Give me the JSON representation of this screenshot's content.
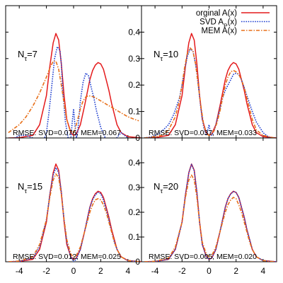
{
  "chart_data": {
    "type": "line",
    "layout": "2x2 panels sharing x and y axes",
    "xlim": [
      -5,
      5
    ],
    "ylim": [
      0,
      0.5
    ],
    "xticks": [
      -4,
      -2,
      0,
      2,
      4
    ],
    "xtick_labels": [
      "-4",
      "-2",
      "0",
      "2",
      "4"
    ],
    "yticks": [
      0,
      0.1,
      0.2,
      0.3,
      0.4
    ],
    "ytick_labels": [
      "0",
      "0.1",
      "0.2",
      "0.3",
      "0.4"
    ],
    "grid": false,
    "legend": {
      "placement": "top-right (upper-right panel)",
      "entries": [
        {
          "label_main": "orginal A(x)",
          "label_sub": "",
          "label_tail": "",
          "color": "#e41a1c",
          "dash": "solid"
        },
        {
          "label_main": "SVD A",
          "label_sub": "P",
          "label_tail": "(x)",
          "color": "#1f3fd0",
          "dash": "dotted"
        },
        {
          "label_main": "MEM A(x)",
          "label_sub": "",
          "label_tail": "",
          "color": "#e8701a",
          "dash": "dashdot"
        }
      ]
    },
    "panels": [
      {
        "label_main": "N",
        "label_sub": "τ",
        "label_tail": "=7",
        "rmse_text": "RMSE: SVD=0.076, MEM=0.067",
        "series": [
          {
            "name": "orginal A(x)",
            "x": [
              -4.8,
              -4,
              -3,
              -2.5,
              -2,
              -1.75,
              -1.5,
              -1.3,
              -1.1,
              -0.9,
              -0.7,
              -0.5,
              -0.2,
              0,
              0.2,
              0.5,
              0.8,
              1,
              1.2,
              1.4,
              1.6,
              1.8,
              2,
              2.2,
              2.4,
              2.6,
              2.8,
              3,
              3.2,
              3.5,
              4,
              5
            ],
            "y": [
              0,
              0.001,
              0.01,
              0.05,
              0.16,
              0.27,
              0.36,
              0.395,
              0.37,
              0.28,
              0.16,
              0.07,
              0.02,
              0.01,
              0.015,
              0.05,
              0.12,
              0.17,
              0.22,
              0.255,
              0.275,
              0.285,
              0.28,
              0.26,
              0.22,
              0.18,
              0.13,
              0.09,
              0.05,
              0.02,
              0.005,
              0
            ]
          },
          {
            "name": "SVD A_P(x)",
            "x": [
              -4.8,
              -4.5,
              -4,
              -3.5,
              -3,
              -2.6,
              -2.2,
              -2,
              -1.8,
              -1.6,
              -1.4,
              -1.2,
              -1,
              -0.9,
              -0.8,
              -0.6,
              -0.4,
              -0.2,
              -0.1,
              0,
              0.1,
              0.2,
              0.3,
              0.5,
              0.7,
              0.9,
              1.1,
              1.3,
              1.5,
              1.7,
              2,
              2.5,
              3,
              3.5,
              4,
              4.5,
              4.8
            ],
            "y": [
              -0.01,
              -0.005,
              0.01,
              0.01,
              0.0,
              -0.01,
              -0.01,
              0.02,
              0.1,
              0.2,
              0.3,
              0.345,
              0.33,
              0.28,
              0.18,
              0.06,
              0.0,
              0.0,
              0.06,
              0.11,
              0.05,
              0.0,
              0.02,
              0.14,
              0.21,
              0.245,
              0.235,
              0.19,
              0.15,
              0.1,
              0.04,
              -0.02,
              -0.01,
              0.02,
              0.0,
              -0.02,
              0.0
            ]
          },
          {
            "name": "MEM A(x)",
            "x": [
              -4.8,
              -4,
              -3.5,
              -3,
              -2.5,
              -2,
              -1.7,
              -1.5,
              -1.3,
              -1.1,
              -0.9,
              -0.7,
              -0.5,
              -0.3,
              -0.1,
              0,
              0.1,
              0.3,
              0.5,
              0.7,
              0.9,
              1.1,
              1.5,
              2,
              2.5,
              3,
              3.5,
              4,
              4.5,
              4.8
            ],
            "y": [
              0.02,
              0.05,
              0.08,
              0.12,
              0.17,
              0.23,
              0.27,
              0.29,
              0.29,
              0.26,
              0.2,
              0.13,
              0.07,
              0.035,
              0.02,
              0.02,
              0.03,
              0.07,
              0.11,
              0.14,
              0.155,
              0.16,
              0.155,
              0.14,
              0.125,
              0.11,
              0.095,
              0.08,
              0.07,
              0.065
            ]
          }
        ]
      },
      {
        "label_main": "N",
        "label_sub": "τ",
        "label_tail": "=10",
        "rmse_text": "RMSE: SVD=0.037, MEM=0.033",
        "series": [
          {
            "name": "orginal A(x)",
            "x": [
              -4.8,
              -4,
              -3,
              -2.5,
              -2,
              -1.75,
              -1.5,
              -1.3,
              -1.1,
              -0.9,
              -0.7,
              -0.5,
              -0.2,
              0,
              0.2,
              0.5,
              0.8,
              1,
              1.2,
              1.4,
              1.6,
              1.8,
              2,
              2.2,
              2.4,
              2.6,
              2.8,
              3,
              3.2,
              3.5,
              4,
              5
            ],
            "y": [
              0,
              0.001,
              0.01,
              0.05,
              0.16,
              0.27,
              0.36,
              0.395,
              0.37,
              0.28,
              0.16,
              0.07,
              0.02,
              0.01,
              0.015,
              0.05,
              0.12,
              0.17,
              0.22,
              0.255,
              0.275,
              0.285,
              0.28,
              0.26,
              0.22,
              0.18,
              0.13,
              0.09,
              0.05,
              0.02,
              0.005,
              0
            ]
          },
          {
            "name": "SVD A_P(x)",
            "x": [
              -4.8,
              -4.2,
              -3.6,
              -3,
              -2.6,
              -2.2,
              -2,
              -1.8,
              -1.6,
              -1.4,
              -1.2,
              -1,
              -0.8,
              -0.6,
              -0.4,
              -0.2,
              -0.1,
              0,
              0.1,
              0.2,
              0.4,
              0.6,
              0.8,
              1,
              1.2,
              1.4,
              1.6,
              1.8,
              2,
              2.2,
              2.4,
              2.6,
              2.8,
              3,
              3.2,
              3.5,
              4,
              4.5,
              4.8
            ],
            "y": [
              0.0,
              0.005,
              0.02,
              0.05,
              0.09,
              0.15,
              0.2,
              0.26,
              0.31,
              0.335,
              0.33,
              0.28,
              0.2,
              0.11,
              0.04,
              0.01,
              0.03,
              0.05,
              0.02,
              0.01,
              0.03,
              0.07,
              0.11,
              0.15,
              0.18,
              0.2,
              0.22,
              0.24,
              0.245,
              0.24,
              0.22,
              0.19,
              0.16,
              0.13,
              0.1,
              0.06,
              0.02,
              0.0,
              0.0
            ]
          },
          {
            "name": "MEM A(x)",
            "x": [
              -4.8,
              -4,
              -3.5,
              -3,
              -2.5,
              -2.2,
              -2,
              -1.8,
              -1.6,
              -1.4,
              -1.2,
              -1,
              -0.8,
              -0.6,
              -0.4,
              -0.2,
              0,
              0.2,
              0.4,
              0.6,
              0.8,
              1,
              1.2,
              1.4,
              1.6,
              1.8,
              2,
              2.2,
              2.4,
              2.6,
              2.8,
              3,
              3.2,
              3.5,
              4,
              4.8
            ],
            "y": [
              0,
              0.005,
              0.01,
              0.03,
              0.08,
              0.14,
              0.2,
              0.27,
              0.32,
              0.34,
              0.33,
              0.28,
              0.2,
              0.12,
              0.05,
              0.015,
              0.01,
              0.015,
              0.03,
              0.06,
              0.1,
              0.15,
              0.2,
              0.23,
              0.25,
              0.255,
              0.25,
              0.24,
              0.22,
              0.19,
              0.15,
              0.11,
              0.07,
              0.03,
              0.01,
              0
            ]
          }
        ]
      },
      {
        "label_main": "N",
        "label_sub": "τ",
        "label_tail": "=15",
        "rmse_text": "RMSE: SVD=0.012, MEM=0.025",
        "series": [
          {
            "name": "orginal A(x)",
            "x": [
              -4.8,
              -4,
              -3,
              -2.5,
              -2,
              -1.75,
              -1.5,
              -1.3,
              -1.1,
              -0.9,
              -0.7,
              -0.5,
              -0.2,
              0,
              0.2,
              0.5,
              0.8,
              1,
              1.2,
              1.4,
              1.6,
              1.8,
              2,
              2.2,
              2.4,
              2.6,
              2.8,
              3,
              3.2,
              3.5,
              4,
              5
            ],
            "y": [
              0,
              0.001,
              0.01,
              0.05,
              0.16,
              0.27,
              0.36,
              0.395,
              0.37,
              0.28,
              0.16,
              0.07,
              0.02,
              0.01,
              0.015,
              0.05,
              0.12,
              0.17,
              0.22,
              0.255,
              0.275,
              0.285,
              0.28,
              0.26,
              0.22,
              0.18,
              0.13,
              0.09,
              0.05,
              0.02,
              0.005,
              0
            ]
          },
          {
            "name": "SVD A_P(x)",
            "x": [
              -4.8,
              -4,
              -3,
              -2.5,
              -2,
              -1.75,
              -1.5,
              -1.3,
              -1.1,
              -0.9,
              -0.7,
              -0.5,
              -0.2,
              0,
              0.2,
              0.5,
              0.8,
              1,
              1.2,
              1.4,
              1.6,
              1.8,
              2,
              2.2,
              2.4,
              2.6,
              2.8,
              3,
              3.2,
              3.5,
              4,
              4.8
            ],
            "y": [
              0,
              0.002,
              0.015,
              0.06,
              0.17,
              0.27,
              0.35,
              0.38,
              0.36,
              0.28,
              0.17,
              0.08,
              0.02,
              0.0,
              0.01,
              0.05,
              0.12,
              0.17,
              0.22,
              0.25,
              0.27,
              0.28,
              0.275,
              0.25,
              0.21,
              0.17,
              0.12,
              0.08,
              0.05,
              0.02,
              0.005,
              0
            ]
          },
          {
            "name": "MEM A(x)",
            "x": [
              -4.8,
              -4,
              -3,
              -2.5,
              -2,
              -1.75,
              -1.5,
              -1.3,
              -1.1,
              -0.9,
              -0.7,
              -0.5,
              -0.2,
              0,
              0.2,
              0.5,
              0.8,
              1,
              1.2,
              1.4,
              1.6,
              1.8,
              2,
              2.2,
              2.4,
              2.6,
              2.8,
              3,
              3.2,
              3.5,
              4,
              4.8
            ],
            "y": [
              0,
              0.003,
              0.02,
              0.07,
              0.17,
              0.26,
              0.33,
              0.355,
              0.34,
              0.27,
              0.17,
              0.09,
              0.03,
              0.02,
              0.025,
              0.06,
              0.12,
              0.16,
              0.2,
              0.23,
              0.25,
              0.255,
              0.25,
              0.23,
              0.2,
              0.16,
              0.12,
              0.08,
              0.05,
              0.02,
              0.005,
              0
            ]
          }
        ]
      },
      {
        "label_main": "N",
        "label_sub": "τ",
        "label_tail": "=20",
        "rmse_text": "RMSE: SVD=0.005, MEM=0.020",
        "series": [
          {
            "name": "orginal A(x)",
            "x": [
              -4.8,
              -4,
              -3,
              -2.5,
              -2,
              -1.75,
              -1.5,
              -1.3,
              -1.1,
              -0.9,
              -0.7,
              -0.5,
              -0.2,
              0,
              0.2,
              0.5,
              0.8,
              1,
              1.2,
              1.4,
              1.6,
              1.8,
              2,
              2.2,
              2.4,
              2.6,
              2.8,
              3,
              3.2,
              3.5,
              4,
              5
            ],
            "y": [
              0,
              0.001,
              0.01,
              0.05,
              0.16,
              0.27,
              0.36,
              0.395,
              0.37,
              0.28,
              0.16,
              0.07,
              0.02,
              0.01,
              0.015,
              0.05,
              0.12,
              0.17,
              0.22,
              0.255,
              0.275,
              0.285,
              0.28,
              0.26,
              0.22,
              0.18,
              0.13,
              0.09,
              0.05,
              0.02,
              0.005,
              0
            ]
          },
          {
            "name": "SVD A_P(x)",
            "x": [
              -4.8,
              -4,
              -3,
              -2.5,
              -2,
              -1.75,
              -1.5,
              -1.3,
              -1.1,
              -0.9,
              -0.7,
              -0.5,
              -0.2,
              0,
              0.2,
              0.5,
              0.8,
              1,
              1.2,
              1.4,
              1.6,
              1.8,
              2,
              2.2,
              2.4,
              2.6,
              2.8,
              3,
              3.2,
              3.5,
              4,
              5
            ],
            "y": [
              0,
              0.001,
              0.01,
              0.05,
              0.16,
              0.27,
              0.36,
              0.393,
              0.368,
              0.28,
              0.16,
              0.07,
              0.02,
              0.01,
              0.015,
              0.05,
              0.12,
              0.17,
              0.22,
              0.255,
              0.274,
              0.283,
              0.28,
              0.26,
              0.22,
              0.18,
              0.13,
              0.09,
              0.05,
              0.02,
              0.005,
              0
            ]
          },
          {
            "name": "MEM A(x)",
            "x": [
              -4.8,
              -4,
              -3,
              -2.5,
              -2,
              -1.75,
              -1.5,
              -1.3,
              -1.1,
              -0.9,
              -0.7,
              -0.5,
              -0.2,
              0,
              0.2,
              0.5,
              0.8,
              1,
              1.2,
              1.4,
              1.6,
              1.8,
              2,
              2.2,
              2.4,
              2.6,
              2.8,
              3,
              3.2,
              3.5,
              4,
              4.8
            ],
            "y": [
              0,
              0.002,
              0.015,
              0.06,
              0.16,
              0.26,
              0.33,
              0.35,
              0.33,
              0.26,
              0.16,
              0.08,
              0.03,
              0.02,
              0.025,
              0.06,
              0.12,
              0.16,
              0.2,
              0.23,
              0.25,
              0.26,
              0.255,
              0.23,
              0.2,
              0.16,
              0.12,
              0.08,
              0.05,
              0.02,
              0.005,
              0
            ]
          }
        ]
      }
    ]
  }
}
